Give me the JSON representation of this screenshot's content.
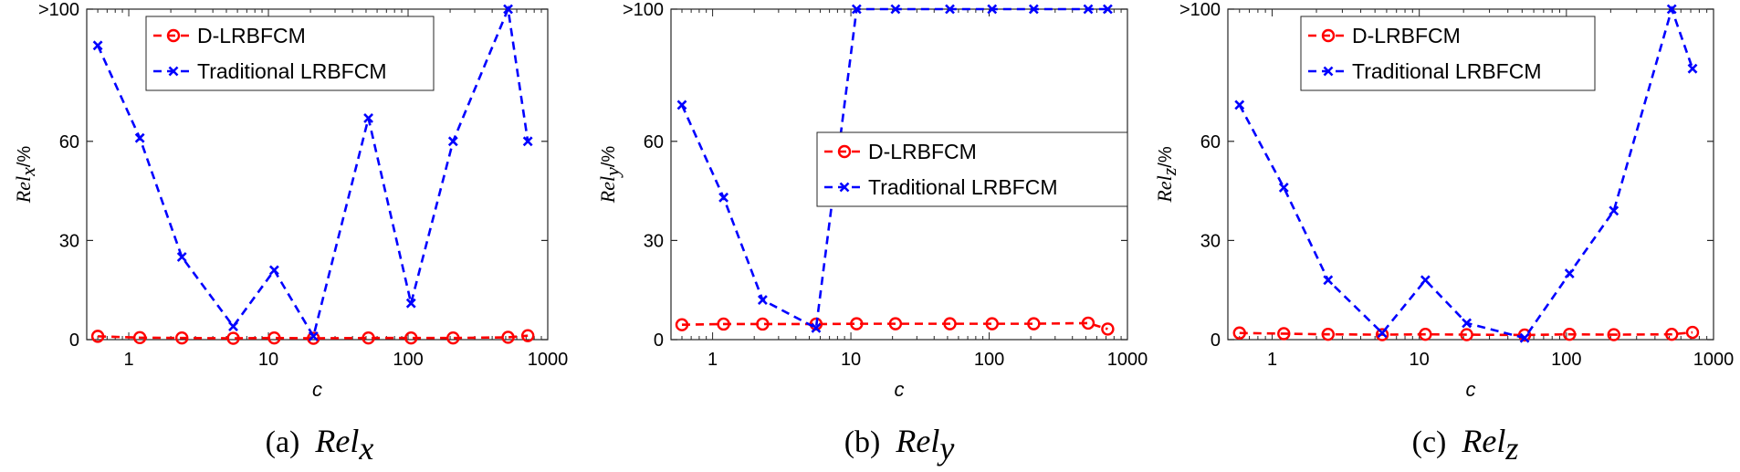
{
  "chart_data": [
    {
      "type": "line",
      "panel_label": "(a)",
      "caption_var": "Rel",
      "caption_sub": "x",
      "ylabel_var": "Rel",
      "ylabel_sub": "x",
      "ylabel_unit": "/%",
      "xlabel": "c",
      "x_scale": "log",
      "xlim": [
        0.5,
        1000
      ],
      "ylim": [
        0,
        100
      ],
      "x_ticks": [
        1,
        10,
        100,
        1000
      ],
      "x_tick_labels": [
        "1",
        "10",
        "100",
        "1000"
      ],
      "y_ticks": [
        0,
        30,
        60,
        100
      ],
      "y_tick_labels": [
        "0",
        "30",
        "60",
        ">100"
      ],
      "legend_position": "top-center",
      "x": [
        0.6,
        1.2,
        2.4,
        5.6,
        11,
        21,
        52,
        105,
        210,
        520,
        720
      ],
      "series": [
        {
          "name": "D-LRBFCM",
          "color": "#ff0000",
          "marker": "circle",
          "dash": "dashed",
          "values": [
            1.0,
            0.6,
            0.5,
            0.4,
            0.5,
            0.4,
            0.5,
            0.5,
            0.5,
            0.7,
            1.2
          ]
        },
        {
          "name": "Traditional LRBFCM",
          "color": "#0000ff",
          "marker": "x",
          "dash": "dashed",
          "values": [
            89,
            61,
            25,
            4,
            21,
            1,
            67,
            11,
            60,
            100,
            60
          ]
        }
      ]
    },
    {
      "type": "line",
      "panel_label": "(b)",
      "caption_var": "Rel",
      "caption_sub": "y",
      "ylabel_var": "Rel",
      "ylabel_sub": "y",
      "ylabel_unit": "/%",
      "xlabel": "c",
      "x_scale": "log",
      "xlim": [
        0.5,
        1000
      ],
      "ylim": [
        0,
        100
      ],
      "x_ticks": [
        1,
        10,
        100,
        1000
      ],
      "x_tick_labels": [
        "1",
        "10",
        "100",
        "1000"
      ],
      "y_ticks": [
        0,
        30,
        60,
        100
      ],
      "y_tick_labels": [
        "0",
        "30",
        "60",
        ">100"
      ],
      "legend_position": "center-right",
      "x": [
        0.6,
        1.2,
        2.3,
        5.6,
        11,
        21,
        52,
        105,
        210,
        520,
        720
      ],
      "series": [
        {
          "name": "D-LRBFCM",
          "color": "#ff0000",
          "marker": "circle",
          "dash": "dashed",
          "values": [
            4.5,
            4.7,
            4.7,
            4.7,
            4.8,
            4.8,
            4.8,
            4.8,
            4.8,
            5.0,
            3.2
          ]
        },
        {
          "name": "Traditional LRBFCM",
          "color": "#0000ff",
          "marker": "x",
          "dash": "dashed",
          "values": [
            71,
            43,
            12,
            3.5,
            100,
            100,
            100,
            100,
            100,
            100,
            100
          ]
        }
      ]
    },
    {
      "type": "line",
      "panel_label": "(c)",
      "caption_var": "Rel",
      "caption_sub": "z",
      "ylabel_var": "Rel",
      "ylabel_sub": "z",
      "ylabel_unit": "/%",
      "xlabel": "c",
      "x_scale": "log",
      "xlim": [
        0.5,
        1000
      ],
      "ylim": [
        0,
        100
      ],
      "x_ticks": [
        1,
        10,
        100,
        1000
      ],
      "x_tick_labels": [
        "1",
        "10",
        "100",
        "1000"
      ],
      "y_ticks": [
        0,
        30,
        60,
        100
      ],
      "y_tick_labels": [
        "0",
        "30",
        "60",
        ">100"
      ],
      "legend_position": "top-left",
      "x": [
        0.6,
        1.2,
        2.4,
        5.6,
        11,
        21,
        52,
        105,
        210,
        520,
        720
      ],
      "series": [
        {
          "name": "D-LRBFCM",
          "color": "#ff0000",
          "marker": "circle",
          "dash": "dashed",
          "values": [
            2.0,
            1.8,
            1.6,
            1.5,
            1.6,
            1.5,
            1.4,
            1.6,
            1.5,
            1.6,
            2.2
          ]
        },
        {
          "name": "Traditional LRBFCM",
          "color": "#0000ff",
          "marker": "x",
          "dash": "dashed",
          "values": [
            71,
            46,
            18,
            2,
            18,
            5,
            0.5,
            20,
            39,
            100,
            82
          ]
        }
      ]
    }
  ]
}
